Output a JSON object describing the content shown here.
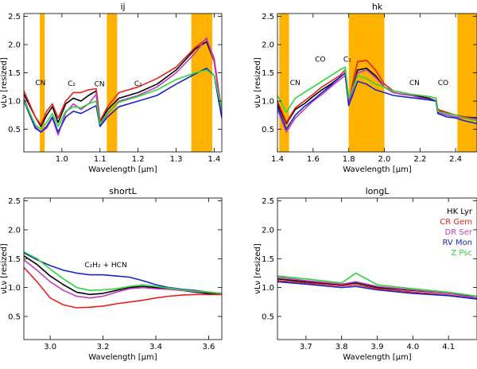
{
  "chart_data": [
    {
      "type": "line",
      "title": "ij",
      "xlabel": "Wavelength [μm]",
      "ylabel": "νLν [resized]",
      "xlim": [
        0.9,
        1.42
      ],
      "ylim": [
        0.1,
        2.55
      ],
      "xticks": [
        1.0,
        1.1,
        1.2,
        1.3,
        1.4
      ],
      "xtick_labels": [
        "1.0",
        "1.1",
        "1.2",
        "1.3",
        "1.4"
      ],
      "yticks": [
        0.5,
        1.0,
        1.5,
        2.0,
        2.5
      ],
      "ytick_labels": [
        "0.5",
        "1.0",
        "1.5",
        "2.0",
        "2.5"
      ],
      "shaded_bands": [
        [
          0.942,
          0.955
        ],
        [
          1.118,
          1.145
        ],
        [
          1.34,
          1.395
        ]
      ],
      "annotations": [
        {
          "text": "CN",
          "x": 0.93,
          "y": 1.28
        },
        {
          "text": "C₂",
          "x": 1.015,
          "y": 1.27
        },
        {
          "text": "CN",
          "x": 1.085,
          "y": 1.26
        },
        {
          "text": "C₂",
          "x": 1.19,
          "y": 1.27
        }
      ],
      "series": [
        {
          "name": "HK Lyr",
          "color": "#000000",
          "x": [
            0.9,
            0.93,
            0.945,
            0.96,
            0.975,
            0.99,
            1.01,
            1.03,
            1.05,
            1.07,
            1.09,
            1.1,
            1.12,
            1.15,
            1.2,
            1.25,
            1.3,
            1.35,
            1.38,
            1.4,
            1.42
          ],
          "y": [
            1.12,
            0.72,
            0.55,
            0.75,
            0.9,
            0.62,
            0.95,
            1.05,
            1.0,
            1.1,
            1.18,
            0.62,
            0.85,
            1.05,
            1.15,
            1.3,
            1.55,
            1.92,
            2.05,
            1.7,
            0.78
          ]
        },
        {
          "name": "CR Gem",
          "color": "#e8201c",
          "x": [
            0.9,
            0.93,
            0.945,
            0.96,
            0.975,
            0.99,
            1.01,
            1.03,
            1.05,
            1.07,
            1.09,
            1.1,
            1.12,
            1.15,
            1.2,
            1.25,
            1.3,
            1.35,
            1.38,
            1.4,
            1.42
          ],
          "y": [
            1.18,
            0.72,
            0.58,
            0.82,
            0.95,
            0.7,
            1.0,
            1.15,
            1.15,
            1.2,
            1.22,
            0.65,
            0.9,
            1.15,
            1.25,
            1.4,
            1.6,
            1.95,
            2.1,
            1.75,
            0.8
          ]
        },
        {
          "name": "DR Ser",
          "color": "#c13bc1",
          "x": [
            0.9,
            0.93,
            0.945,
            0.96,
            0.975,
            0.99,
            1.01,
            1.03,
            1.05,
            1.07,
            1.09,
            1.1,
            1.12,
            1.15,
            1.2,
            1.25,
            1.3,
            1.35,
            1.38,
            1.4,
            1.42
          ],
          "y": [
            1.05,
            0.55,
            0.45,
            0.52,
            0.7,
            0.4,
            0.8,
            0.95,
            0.85,
            0.95,
            1.12,
            0.55,
            0.78,
            1.0,
            1.1,
            1.25,
            1.5,
            1.85,
            2.12,
            1.7,
            0.75
          ]
        },
        {
          "name": "RV Mon",
          "color": "#1a26c8",
          "x": [
            0.9,
            0.93,
            0.945,
            0.96,
            0.975,
            0.99,
            1.01,
            1.03,
            1.05,
            1.07,
            1.09,
            1.1,
            1.12,
            1.15,
            1.2,
            1.25,
            1.3,
            1.35,
            1.38,
            1.4,
            1.42
          ],
          "y": [
            1.0,
            0.52,
            0.45,
            0.55,
            0.72,
            0.45,
            0.72,
            0.82,
            0.78,
            0.85,
            0.92,
            0.55,
            0.72,
            0.9,
            1.0,
            1.1,
            1.3,
            1.48,
            1.58,
            1.45,
            0.7
          ]
        },
        {
          "name": "Z Psc",
          "color": "#2fd63a",
          "x": [
            0.9,
            0.93,
            0.945,
            0.96,
            0.975,
            0.99,
            1.01,
            1.03,
            1.05,
            1.07,
            1.09,
            1.1,
            1.12,
            1.15,
            1.2,
            1.25,
            1.3,
            1.35,
            1.38,
            1.4,
            1.42
          ],
          "y": [
            1.02,
            0.58,
            0.5,
            0.62,
            0.78,
            0.55,
            0.82,
            0.9,
            0.88,
            0.95,
            1.0,
            0.6,
            0.8,
            0.98,
            1.08,
            1.2,
            1.38,
            1.5,
            1.55,
            1.45,
            0.85
          ]
        }
      ]
    },
    {
      "type": "line",
      "title": "hk",
      "xlabel": "Wavelength [μm]",
      "ylabel": "νLν [resized]",
      "xlim": [
        1.4,
        2.52
      ],
      "ylim": [
        0.1,
        2.55
      ],
      "xticks": [
        1.4,
        1.6,
        1.8,
        2.0,
        2.2,
        2.4
      ],
      "xtick_labels": [
        "1.4",
        "1.6",
        "1.8",
        "2.0",
        "2.2",
        "2.4"
      ],
      "yticks": [
        0.5,
        1.0,
        1.5,
        2.0,
        2.5
      ],
      "ytick_labels": [
        "0.5",
        "1.0",
        "1.5",
        "2.0",
        "2.5"
      ],
      "shaded_bands": [
        [
          1.41,
          1.465
        ],
        [
          1.8,
          2.0
        ],
        [
          2.41,
          2.52
        ]
      ],
      "annotations": [
        {
          "text": "CN",
          "x": 1.47,
          "y": 1.28
        },
        {
          "text": "CO",
          "x": 1.61,
          "y": 1.7
        },
        {
          "text": "C₂",
          "x": 1.77,
          "y": 1.7
        },
        {
          "text": "CN",
          "x": 2.14,
          "y": 1.28
        },
        {
          "text": "CO",
          "x": 2.3,
          "y": 1.28
        }
      ],
      "series": [
        {
          "name": "HK Lyr",
          "color": "#000000",
          "x": [
            1.4,
            1.45,
            1.5,
            1.55,
            1.6,
            1.65,
            1.7,
            1.75,
            1.78,
            1.8,
            1.85,
            1.9,
            1.95,
            2.0,
            2.05,
            2.1,
            2.15,
            2.2,
            2.25,
            2.29,
            2.3,
            2.35,
            2.4,
            2.45,
            2.52
          ],
          "y": [
            0.95,
            0.6,
            0.85,
            0.95,
            1.08,
            1.2,
            1.3,
            1.42,
            1.5,
            0.95,
            1.55,
            1.58,
            1.45,
            1.25,
            1.15,
            1.12,
            1.1,
            1.08,
            1.05,
            1.0,
            0.85,
            0.78,
            0.75,
            0.72,
            0.7
          ]
        },
        {
          "name": "CR Gem",
          "color": "#e8201c",
          "x": [
            1.4,
            1.45,
            1.5,
            1.55,
            1.6,
            1.65,
            1.7,
            1.75,
            1.78,
            1.8,
            1.85,
            1.9,
            1.95,
            2.0,
            2.05,
            2.1,
            2.15,
            2.2,
            2.25,
            2.29,
            2.3,
            2.35,
            2.4,
            2.45,
            2.52
          ],
          "y": [
            1.0,
            0.62,
            0.88,
            1.0,
            1.12,
            1.25,
            1.35,
            1.45,
            1.55,
            1.0,
            1.7,
            1.72,
            1.55,
            1.3,
            1.18,
            1.15,
            1.12,
            1.1,
            1.08,
            1.05,
            0.85,
            0.8,
            0.75,
            0.72,
            0.68
          ]
        },
        {
          "name": "DR Ser",
          "color": "#c13bc1",
          "x": [
            1.4,
            1.45,
            1.5,
            1.55,
            1.6,
            1.65,
            1.7,
            1.75,
            1.78,
            1.8,
            1.85,
            1.9,
            1.95,
            2.0,
            2.05,
            2.1,
            2.15,
            2.2,
            2.25,
            2.29,
            2.3,
            2.35,
            2.4,
            2.45,
            2.52
          ],
          "y": [
            0.85,
            0.45,
            0.7,
            0.85,
            1.0,
            1.12,
            1.25,
            1.38,
            1.45,
            0.95,
            1.5,
            1.55,
            1.42,
            1.25,
            1.15,
            1.12,
            1.1,
            1.06,
            1.03,
            1.0,
            0.8,
            0.75,
            0.72,
            0.7,
            0.68
          ]
        },
        {
          "name": "RV Mon",
          "color": "#1a26c8",
          "x": [
            1.4,
            1.45,
            1.5,
            1.55,
            1.6,
            1.65,
            1.7,
            1.75,
            1.78,
            1.8,
            1.85,
            1.9,
            1.95,
            2.0,
            2.05,
            2.1,
            2.15,
            2.2,
            2.25,
            2.29,
            2.3,
            2.35,
            2.4,
            2.45,
            2.52
          ],
          "y": [
            0.9,
            0.5,
            0.75,
            0.9,
            1.02,
            1.15,
            1.28,
            1.42,
            1.5,
            0.92,
            1.35,
            1.3,
            1.2,
            1.15,
            1.1,
            1.08,
            1.06,
            1.04,
            1.02,
            1.0,
            0.78,
            0.72,
            0.7,
            0.65,
            0.6
          ]
        },
        {
          "name": "Z Psc",
          "color": "#2fd63a",
          "x": [
            1.4,
            1.45,
            1.5,
            1.55,
            1.6,
            1.65,
            1.7,
            1.75,
            1.78,
            1.8,
            1.85,
            1.9,
            1.95,
            2.0,
            2.05,
            2.1,
            2.15,
            2.2,
            2.25,
            2.29,
            2.3,
            2.35,
            2.4,
            2.45,
            2.52
          ],
          "y": [
            1.1,
            0.8,
            1.05,
            1.15,
            1.25,
            1.35,
            1.45,
            1.55,
            1.6,
            1.05,
            1.45,
            1.4,
            1.3,
            1.25,
            1.18,
            1.15,
            1.12,
            1.1,
            1.08,
            1.05,
            0.82,
            0.78,
            0.75,
            0.7,
            0.65
          ]
        }
      ]
    },
    {
      "type": "line",
      "title": "shortL",
      "xlabel": "Wavelength [μm]",
      "ylabel": "νLν [resized]",
      "xlim": [
        2.9,
        3.65
      ],
      "ylim": [
        0.1,
        2.55
      ],
      "xticks": [
        3.0,
        3.2,
        3.4,
        3.6
      ],
      "xtick_labels": [
        "3.0",
        "3.2",
        "3.4",
        "3.6"
      ],
      "yticks": [
        0.5,
        1.0,
        1.5,
        2.0,
        2.5
      ],
      "ytick_labels": [
        "0.5",
        "1.0",
        "1.5",
        "2.0",
        "2.5"
      ],
      "annotations": [
        {
          "text": "C₂H₂ + HCN",
          "x": 3.13,
          "y": 1.35
        }
      ],
      "series": [
        {
          "name": "HK Lyr",
          "color": "#000000",
          "x": [
            2.9,
            2.95,
            3.0,
            3.05,
            3.1,
            3.15,
            3.2,
            3.25,
            3.3,
            3.35,
            3.4,
            3.45,
            3.5,
            3.55,
            3.6,
            3.65
          ],
          "y": [
            1.55,
            1.4,
            1.2,
            1.05,
            0.92,
            0.88,
            0.9,
            0.95,
            1.0,
            1.02,
            1.0,
            0.98,
            0.95,
            0.92,
            0.9,
            0.88
          ]
        },
        {
          "name": "CR Gem",
          "color": "#e8201c",
          "x": [
            2.9,
            2.95,
            3.0,
            3.05,
            3.1,
            3.15,
            3.2,
            3.25,
            3.3,
            3.35,
            3.4,
            3.45,
            3.5,
            3.55,
            3.6,
            3.65
          ],
          "y": [
            1.35,
            1.1,
            0.82,
            0.7,
            0.65,
            0.66,
            0.68,
            0.72,
            0.75,
            0.78,
            0.82,
            0.85,
            0.87,
            0.88,
            0.88,
            0.88
          ]
        },
        {
          "name": "DR Ser",
          "color": "#c13bc1",
          "x": [
            2.9,
            2.95,
            3.0,
            3.05,
            3.1,
            3.15,
            3.2,
            3.25,
            3.3,
            3.35,
            3.4,
            3.45,
            3.5,
            3.55,
            3.6,
            3.65
          ],
          "y": [
            1.48,
            1.3,
            1.1,
            0.95,
            0.85,
            0.82,
            0.85,
            0.92,
            0.98,
            1.0,
            0.98,
            0.97,
            0.95,
            0.93,
            0.92,
            0.9
          ]
        },
        {
          "name": "RV Mon",
          "color": "#1a26c8",
          "x": [
            2.9,
            2.95,
            3.0,
            3.05,
            3.1,
            3.15,
            3.2,
            3.25,
            3.3,
            3.35,
            3.4,
            3.45,
            3.5,
            3.55,
            3.6,
            3.65
          ],
          "y": [
            1.6,
            1.48,
            1.38,
            1.3,
            1.25,
            1.22,
            1.22,
            1.2,
            1.18,
            1.12,
            1.05,
            1.0,
            0.97,
            0.95,
            0.92,
            0.9
          ]
        },
        {
          "name": "Z Psc",
          "color": "#2fd63a",
          "x": [
            2.9,
            2.95,
            3.0,
            3.05,
            3.1,
            3.15,
            3.2,
            3.25,
            3.3,
            3.35,
            3.4,
            3.45,
            3.5,
            3.55,
            3.6,
            3.65
          ],
          "y": [
            1.62,
            1.5,
            1.32,
            1.15,
            1.0,
            0.95,
            0.96,
            0.98,
            1.02,
            1.05,
            1.02,
            0.99,
            0.96,
            0.94,
            0.92,
            0.9
          ]
        }
      ]
    },
    {
      "type": "line",
      "title": "longL",
      "xlabel": "Wavelength [μm]",
      "ylabel": "νLν [resized]",
      "xlim": [
        3.62,
        4.18
      ],
      "ylim": [
        0.1,
        2.55
      ],
      "xticks": [
        3.7,
        3.8,
        3.9,
        4.0,
        4.1
      ],
      "xtick_labels": [
        "3.7",
        "3.8",
        "3.9",
        "4.0",
        "4.1"
      ],
      "yticks": [
        0.5,
        1.0,
        1.5,
        2.0,
        2.5
      ],
      "ytick_labels": [
        "0.5",
        "1.0",
        "1.5",
        "2.0",
        "2.5"
      ],
      "legend_position": "upper-right",
      "series": [
        {
          "name": "HK Lyr",
          "color": "#000000",
          "x": [
            3.62,
            3.7,
            3.8,
            3.84,
            3.9,
            4.0,
            4.1,
            4.18
          ],
          "y": [
            1.15,
            1.1,
            1.05,
            1.08,
            1.0,
            0.95,
            0.9,
            0.85
          ]
        },
        {
          "name": "CR Gem",
          "color": "#e8201c",
          "x": [
            3.62,
            3.7,
            3.8,
            3.84,
            3.9,
            4.0,
            4.1,
            4.18
          ],
          "y": [
            1.12,
            1.08,
            1.03,
            1.05,
            0.98,
            0.92,
            0.87,
            0.8
          ]
        },
        {
          "name": "DR Ser",
          "color": "#c13bc1",
          "x": [
            3.62,
            3.7,
            3.8,
            3.84,
            3.9,
            4.0,
            4.1,
            4.18
          ],
          "y": [
            1.18,
            1.12,
            1.06,
            1.1,
            1.02,
            0.96,
            0.9,
            0.82
          ]
        },
        {
          "name": "RV Mon",
          "color": "#1a26c8",
          "x": [
            3.62,
            3.7,
            3.8,
            3.84,
            3.9,
            4.0,
            4.1,
            4.18
          ],
          "y": [
            1.1,
            1.06,
            1.0,
            1.02,
            0.96,
            0.9,
            0.86,
            0.8
          ]
        },
        {
          "name": "Z Psc",
          "color": "#2fd63a",
          "x": [
            3.62,
            3.7,
            3.8,
            3.84,
            3.9,
            4.0,
            4.1,
            4.18
          ],
          "y": [
            1.2,
            1.15,
            1.08,
            1.25,
            1.05,
            0.98,
            0.92,
            0.85
          ]
        }
      ]
    }
  ],
  "legend": [
    {
      "label": "HK Lyr",
      "color": "#000000"
    },
    {
      "label": "CR Gem",
      "color": "#e8201c"
    },
    {
      "label": "DR Ser",
      "color": "#c13bc1"
    },
    {
      "label": "RV Mon",
      "color": "#1a26c8"
    },
    {
      "label": "Z Psc",
      "color": "#2fd63a"
    }
  ],
  "band_color": "#ffb300"
}
